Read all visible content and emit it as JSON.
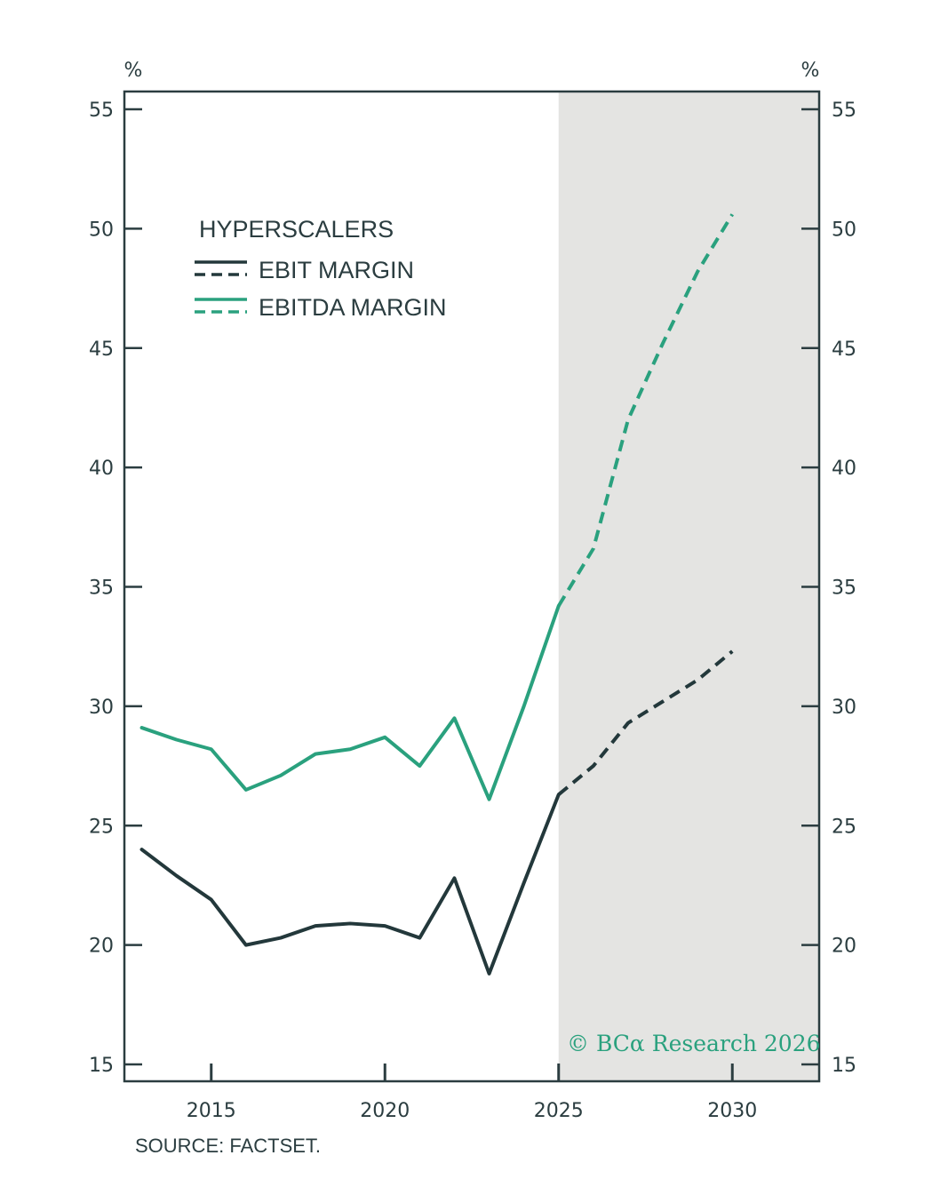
{
  "chart_data": {
    "type": "line",
    "legend_title": "HYPERSCALERS",
    "y_unit_left": "%",
    "y_unit_right": "%",
    "ylim": [
      15,
      55
    ],
    "y_ticks": [
      15,
      20,
      25,
      30,
      35,
      40,
      45,
      50,
      55
    ],
    "xlim": [
      2012.5,
      2032.5
    ],
    "x_ticks": [
      2015,
      2020,
      2025,
      2030
    ],
    "forecast_shade_from": 2025,
    "grid": false,
    "legend_position": "top-left",
    "series": [
      {
        "name": "EBIT MARGIN",
        "color": "#23383b",
        "x": [
          2013,
          2014,
          2015,
          2016,
          2017,
          2018,
          2019,
          2020,
          2021,
          2022,
          2023,
          2024,
          2025,
          2026,
          2027,
          2028,
          2029,
          2030
        ],
        "y": [
          24.0,
          22.9,
          21.9,
          20.0,
          20.3,
          20.8,
          20.9,
          20.8,
          20.3,
          22.8,
          18.8,
          22.6,
          26.3,
          27.5,
          29.3,
          30.2,
          31.1,
          32.3
        ],
        "forecast_from": 2025
      },
      {
        "name": "EBITDA MARGIN",
        "color": "#2aa17e",
        "x": [
          2013,
          2014,
          2015,
          2016,
          2017,
          2018,
          2019,
          2020,
          2021,
          2022,
          2023,
          2024,
          2025,
          2026,
          2027,
          2028,
          2029,
          2030
        ],
        "y": [
          29.1,
          28.6,
          28.2,
          26.5,
          27.1,
          28.0,
          28.2,
          28.7,
          27.5,
          29.5,
          26.1,
          30.0,
          34.2,
          36.6,
          42.0,
          45.2,
          48.2,
          50.6
        ],
        "forecast_from": 2025
      }
    ]
  },
  "source": "SOURCE: FACTSET.",
  "watermark": "© BCα Research 2026",
  "colors": {
    "axis": "#2b3d40",
    "shade": "#e4e4e2",
    "watermark": "#2aa17e"
  }
}
